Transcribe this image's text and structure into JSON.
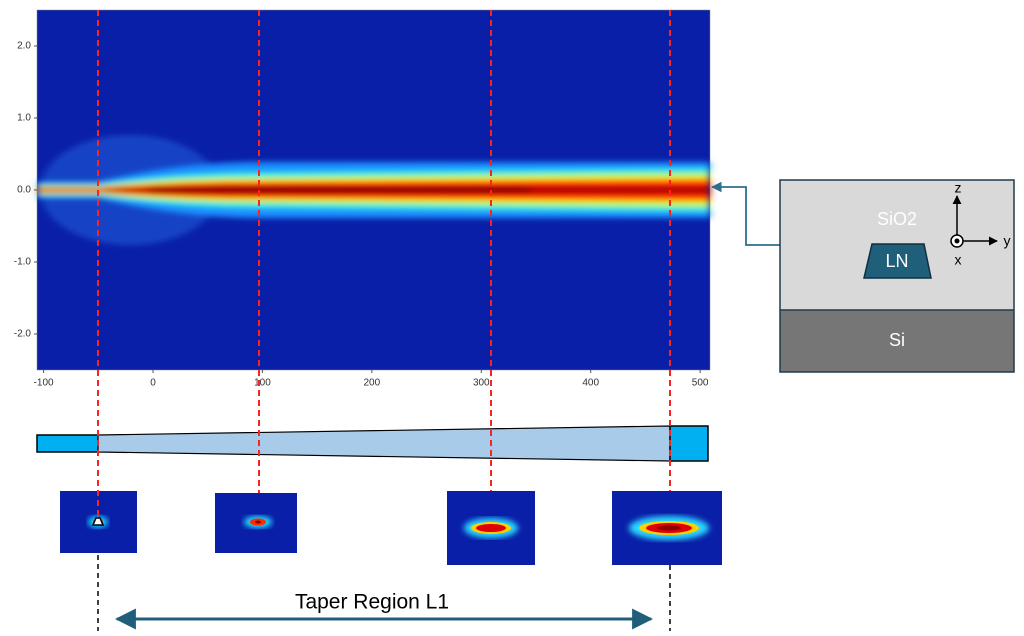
{
  "chart_data": {
    "type": "heatmap",
    "xlim": [
      -106,
      509
    ],
    "ylim": [
      -2.5,
      2.5
    ],
    "xticks": [
      -100,
      0,
      100,
      200,
      300,
      400,
      500
    ],
    "yticks": [
      {
        "value": -2,
        "label": "-2.0"
      },
      {
        "value": -1,
        "label": "-1.0"
      },
      {
        "value": 0,
        "label": "0.0"
      },
      {
        "value": 1,
        "label": "1.0"
      },
      {
        "value": 2,
        "label": "2.0"
      }
    ]
  },
  "cross_section": {
    "cladding": "SiO2",
    "core": "LN",
    "substrate": "Si",
    "axes": {
      "z": "z",
      "x": "x",
      "y": "y"
    }
  },
  "annotation": "Taper Region L1"
}
